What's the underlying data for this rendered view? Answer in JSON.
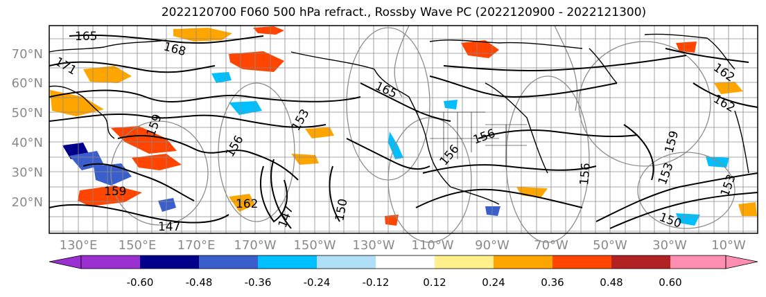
{
  "title": "2022120700 F060 500 hPa refract., Rossby Wave PC (2022120900 - 2022121300)",
  "latitude_labels": [
    "70°N",
    "60°N",
    "50°N",
    "40°N",
    "30°N",
    "20°N"
  ],
  "longitude_labels": [
    "130°E",
    "150°E",
    "170°E",
    "170°W",
    "150°W",
    "130°W",
    "110°W",
    "90°W",
    "70°W",
    "50°W",
    "30°W",
    "10°W"
  ],
  "contour_labels": [
    "165",
    "168",
    "171",
    "165",
    "162",
    "162",
    "159",
    "159",
    "156",
    "156",
    "153",
    "153",
    "150",
    "150",
    "147",
    "147",
    "162",
    "159",
    "156",
    "153",
    "156"
  ],
  "colorbar": {
    "tick_labels": [
      "-0.60",
      "-0.48",
      "-0.36",
      "-0.24",
      "-0.12",
      "0.12",
      "0.24",
      "0.36",
      "0.48",
      "0.60"
    ],
    "colors": [
      "#9b30d0",
      "#00008b",
      "#3a5fcd",
      "#00bfff",
      "#b0e0f8",
      "#ffffff",
      "#fff08c",
      "#ffa500",
      "#ff4500",
      "#b22222",
      "#ff8fb0"
    ]
  }
}
